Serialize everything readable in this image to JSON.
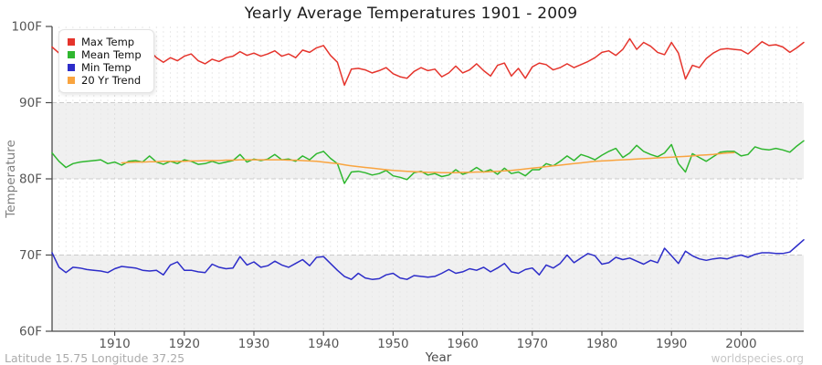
{
  "page": {
    "footer_left": "Latitude 15.75 Longitude 37.25",
    "footer_right": "worldspecies.org"
  },
  "chart_data": {
    "type": "line",
    "title": "Yearly Average Temperatures 1901 - 2009",
    "xlabel": "Year",
    "ylabel": "Temperature",
    "x_range": [
      1901,
      2009
    ],
    "ylim": [
      60,
      100
    ],
    "y_ticks": [
      {
        "value": 60,
        "label": "60F"
      },
      {
        "value": 70,
        "label": "70F"
      },
      {
        "value": 80,
        "label": "80F"
      },
      {
        "value": 90,
        "label": "90F"
      },
      {
        "value": 100,
        "label": "100F"
      }
    ],
    "x_ticks": [
      1910,
      1920,
      1930,
      1940,
      1950,
      1960,
      1970,
      1980,
      1990,
      2000
    ],
    "grid": {
      "vertical_per_year": true,
      "horizontal_dashed_at": [
        70,
        80,
        90
      ],
      "gray_bands": [
        [
          60,
          70
        ],
        [
          80,
          90
        ]
      ]
    },
    "legend_position": "top-left",
    "colors": {
      "band": "#f0f0f0",
      "grid_minor": "#e9e9e9",
      "grid_decade": "#dedede",
      "grid_horizontal": "#cbcbcb",
      "axis": "#4a4a4a",
      "tick_label": "#555555"
    },
    "series": [
      {
        "name": "Max Temp",
        "color": "#e5342c",
        "start_year": 1901,
        "values": [
          97.3,
          96.5,
          95.9,
          96.3,
          96.1,
          96.5,
          96.0,
          96.3,
          95.9,
          96.2,
          95.7,
          96.1,
          96.3,
          95.7,
          96.8,
          95.9,
          95.3,
          95.9,
          95.5,
          96.1,
          96.4,
          95.5,
          95.1,
          95.7,
          95.4,
          95.9,
          96.1,
          96.7,
          96.2,
          96.5,
          96.1,
          96.4,
          96.8,
          96.1,
          96.4,
          95.9,
          96.9,
          96.6,
          97.2,
          97.5,
          96.2,
          95.3,
          92.3,
          94.4,
          94.5,
          94.3,
          93.9,
          94.2,
          94.6,
          93.8,
          93.4,
          93.2,
          94.1,
          94.6,
          94.2,
          94.4,
          93.4,
          93.9,
          94.8,
          93.9,
          94.3,
          95.1,
          94.2,
          93.5,
          94.9,
          95.2,
          93.5,
          94.5,
          93.2,
          94.7,
          95.2,
          95.0,
          94.3,
          94.6,
          95.1,
          94.6,
          95.0,
          95.4,
          95.9,
          96.6,
          96.8,
          96.2,
          97.0,
          98.4,
          97.0,
          97.9,
          97.4,
          96.6,
          96.3,
          97.9,
          96.5,
          93.1,
          94.9,
          94.6,
          95.8,
          96.5,
          97.0,
          97.1,
          97.0,
          96.9,
          96.4,
          97.2,
          98.0,
          97.5,
          97.6,
          97.3,
          96.6,
          97.2,
          97.9
        ]
      },
      {
        "name": "Mean Temp",
        "color": "#2fb72f",
        "start_year": 1901,
        "values": [
          83.4,
          82.3,
          81.5,
          82.0,
          82.2,
          82.3,
          82.4,
          82.5,
          82.0,
          82.2,
          81.8,
          82.3,
          82.4,
          82.2,
          83.0,
          82.2,
          81.9,
          82.3,
          82.0,
          82.5,
          82.3,
          81.9,
          82.0,
          82.3,
          82.0,
          82.2,
          82.4,
          83.2,
          82.2,
          82.6,
          82.4,
          82.6,
          83.2,
          82.5,
          82.6,
          82.3,
          83.0,
          82.5,
          83.3,
          83.6,
          82.7,
          82.0,
          79.4,
          80.9,
          81.0,
          80.8,
          80.5,
          80.7,
          81.1,
          80.4,
          80.2,
          79.9,
          80.8,
          81.0,
          80.5,
          80.7,
          80.3,
          80.5,
          81.2,
          80.6,
          80.9,
          81.5,
          80.9,
          81.2,
          80.6,
          81.4,
          80.7,
          80.9,
          80.4,
          81.2,
          81.2,
          82.0,
          81.7,
          82.3,
          83.0,
          82.4,
          83.2,
          82.9,
          82.5,
          83.1,
          83.6,
          84.0,
          82.8,
          83.4,
          84.4,
          83.6,
          83.2,
          82.9,
          83.4,
          84.5,
          82.0,
          80.9,
          83.3,
          82.8,
          82.3,
          82.9,
          83.5,
          83.6,
          83.6,
          83.0,
          83.2,
          84.2,
          83.9,
          83.8,
          84.0,
          83.8,
          83.5,
          84.3,
          85.0
        ]
      },
      {
        "name": "Min Temp",
        "color": "#2d2dc9",
        "start_year": 1901,
        "values": [
          70.3,
          68.4,
          67.7,
          68.4,
          68.3,
          68.1,
          68.0,
          67.9,
          67.7,
          68.2,
          68.5,
          68.4,
          68.3,
          68.0,
          67.9,
          68.0,
          67.4,
          68.7,
          69.1,
          68.0,
          68.0,
          67.8,
          67.7,
          68.8,
          68.4,
          68.2,
          68.3,
          69.8,
          68.7,
          69.1,
          68.4,
          68.6,
          69.2,
          68.7,
          68.4,
          68.9,
          69.4,
          68.6,
          69.7,
          69.8,
          68.9,
          68.0,
          67.2,
          66.8,
          67.6,
          67.0,
          66.8,
          66.9,
          67.4,
          67.6,
          67.0,
          66.8,
          67.3,
          67.2,
          67.1,
          67.2,
          67.6,
          68.1,
          67.6,
          67.8,
          68.2,
          68.0,
          68.4,
          67.8,
          68.3,
          68.9,
          67.8,
          67.6,
          68.1,
          68.3,
          67.4,
          68.7,
          68.3,
          68.9,
          70.0,
          69.0,
          69.6,
          70.2,
          69.9,
          68.8,
          69.0,
          69.7,
          69.4,
          69.6,
          69.2,
          68.8,
          69.3,
          69.0,
          70.9,
          69.9,
          68.9,
          70.5,
          69.9,
          69.5,
          69.3,
          69.5,
          69.6,
          69.5,
          69.8,
          70.0,
          69.7,
          70.1,
          70.3,
          70.3,
          70.2,
          70.2,
          70.4,
          71.2,
          72.0
        ]
      },
      {
        "name": "20 Yr Trend",
        "color": "#f9a43f",
        "start_year": 1911,
        "values": [
          82.1,
          82.15,
          82.2,
          82.2,
          82.25,
          82.25,
          82.3,
          82.3,
          82.3,
          82.3,
          82.35,
          82.35,
          82.4,
          82.4,
          82.4,
          82.45,
          82.45,
          82.5,
          82.5,
          82.5,
          82.5,
          82.5,
          82.5,
          82.5,
          82.45,
          82.45,
          82.4,
          82.35,
          82.3,
          82.2,
          82.1,
          82.0,
          81.85,
          81.7,
          81.6,
          81.5,
          81.4,
          81.3,
          81.2,
          81.1,
          81.05,
          81.0,
          80.95,
          80.9,
          80.85,
          80.85,
          80.8,
          80.8,
          80.8,
          80.85,
          80.85,
          80.9,
          80.9,
          80.95,
          81.0,
          81.05,
          81.1,
          81.2,
          81.3,
          81.4,
          81.5,
          81.6,
          81.7,
          81.8,
          81.9,
          82.0,
          82.1,
          82.2,
          82.3,
          82.35,
          82.4,
          82.45,
          82.5,
          82.55,
          82.6,
          82.65,
          82.7,
          82.75,
          82.8,
          82.85,
          82.9,
          82.95,
          83.0,
          83.1,
          83.15,
          83.2,
          83.3,
          83.4,
          83.45
        ]
      }
    ]
  }
}
